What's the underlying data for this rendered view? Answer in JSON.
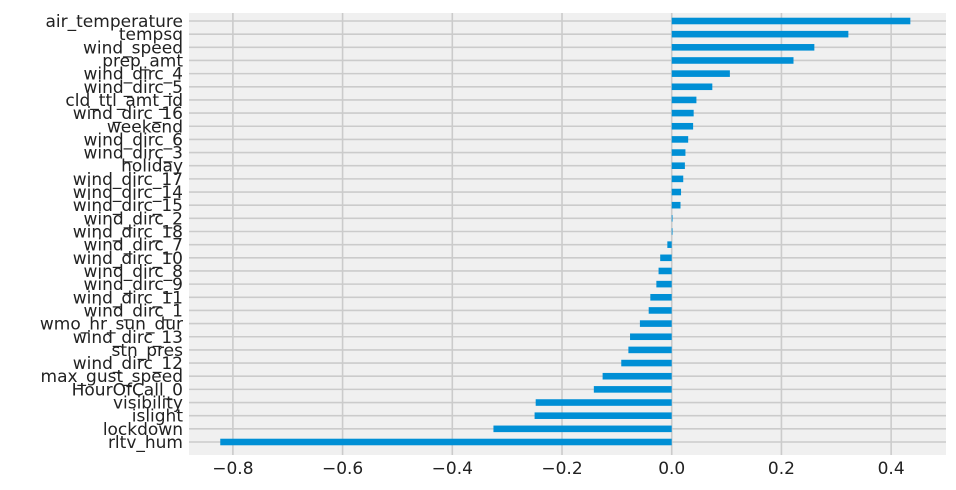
{
  "chart_data": {
    "type": "bar",
    "orientation": "horizontal",
    "categories": [
      "air_temperature",
      "tempsq",
      "wind_speed",
      "prep_amt",
      "wind_dirc_4",
      "wind_dirc_5",
      "cld_ttl_amt_id",
      "wind_dirc_16",
      "weekend",
      "wind_dirc_6",
      "wind_dirc_3",
      "holiday",
      "wind_dirc_17",
      "wind_dirc_14",
      "wind_dirc_15",
      "wind_dirc_2",
      "wind_dirc_18",
      "wind_dirc_7",
      "wind_dirc_10",
      "wind_dirc_8",
      "wind_dirc_9",
      "wind_dirc_11",
      "wind_dirc_1",
      "wmo_hr_sun_dur",
      "wind_dirc_13",
      "stn_pres",
      "wind_dirc_12",
      "max_gust_speed",
      "HourOfCall_0",
      "visibility",
      "islight",
      "lockdown",
      "rltv_hum"
    ],
    "values": [
      0.435,
      0.322,
      0.26,
      0.222,
      0.106,
      0.074,
      0.045,
      0.04,
      0.039,
      0.03,
      0.025,
      0.024,
      0.021,
      0.017,
      0.016,
      0.001,
      0.0,
      -0.008,
      -0.021,
      -0.024,
      -0.028,
      -0.039,
      -0.042,
      -0.058,
      -0.076,
      -0.079,
      -0.092,
      -0.126,
      -0.142,
      -0.248,
      -0.25,
      -0.325,
      -0.823
    ],
    "xlim": [
      -0.88,
      0.5
    ],
    "xticks": [
      -0.8,
      -0.6,
      -0.4,
      -0.2,
      0.0,
      0.2,
      0.4
    ],
    "xtick_labels": [
      "−0.8",
      "−0.6",
      "−0.4",
      "−0.2",
      "0.0",
      "0.2",
      "0.4"
    ],
    "bar_color": "#008fd5",
    "background_color": "#f0f0f0",
    "grid": true
  }
}
